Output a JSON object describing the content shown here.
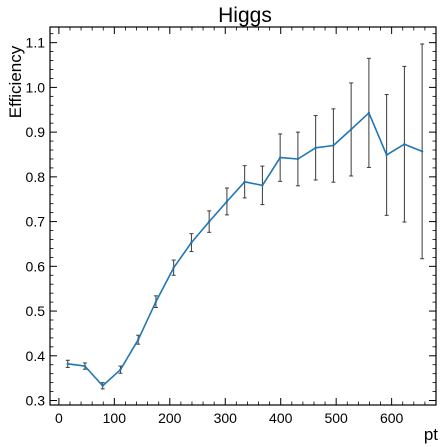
{
  "chart_data": {
    "type": "line",
    "title": "Higgs",
    "xlabel": "pt",
    "ylabel": "Efficiency",
    "xlim": [
      -16,
      680
    ],
    "ylim": [
      0.29,
      1.135
    ],
    "xticks": [
      0,
      100,
      200,
      300,
      400,
      500,
      600
    ],
    "yticks": [
      0.3,
      0.4,
      0.5,
      0.6,
      0.7,
      0.8,
      0.9,
      1.0,
      1.1
    ],
    "xtick_labels": [
      "0",
      "100",
      "200",
      "300",
      "400",
      "500",
      "600"
    ],
    "ytick_labels": [
      "0.3",
      "0.4",
      "0.5",
      "0.6",
      "0.7",
      "0.8",
      "0.9",
      "1.0",
      "1.1"
    ],
    "grid": false,
    "series_color": "#1f77b4",
    "errorbar_color": "#3a3a3a",
    "points": [
      {
        "x": 16,
        "y": 0.382,
        "err": 0.008
      },
      {
        "x": 47,
        "y": 0.377,
        "err": 0.007
      },
      {
        "x": 79,
        "y": 0.333,
        "err": 0.007
      },
      {
        "x": 111,
        "y": 0.369,
        "err": 0.008
      },
      {
        "x": 143,
        "y": 0.436,
        "err": 0.01
      },
      {
        "x": 175,
        "y": 0.521,
        "err": 0.013
      },
      {
        "x": 207,
        "y": 0.597,
        "err": 0.017
      },
      {
        "x": 239,
        "y": 0.653,
        "err": 0.02
      },
      {
        "x": 271,
        "y": 0.7,
        "err": 0.024
      },
      {
        "x": 303,
        "y": 0.745,
        "err": 0.03
      },
      {
        "x": 335,
        "y": 0.789,
        "err": 0.036
      },
      {
        "x": 367,
        "y": 0.781,
        "err": 0.043
      },
      {
        "x": 399,
        "y": 0.843,
        "err": 0.053
      },
      {
        "x": 431,
        "y": 0.84,
        "err": 0.06
      },
      {
        "x": 463,
        "y": 0.865,
        "err": 0.072
      },
      {
        "x": 495,
        "y": 0.87,
        "err": 0.082
      },
      {
        "x": 527,
        "y": 0.906,
        "err": 0.104
      },
      {
        "x": 559,
        "y": 0.943,
        "err": 0.122
      },
      {
        "x": 591,
        "y": 0.849,
        "err": 0.135
      },
      {
        "x": 623,
        "y": 0.873,
        "err": 0.174
      },
      {
        "x": 655,
        "y": 0.857,
        "err": 0.24
      }
    ]
  }
}
